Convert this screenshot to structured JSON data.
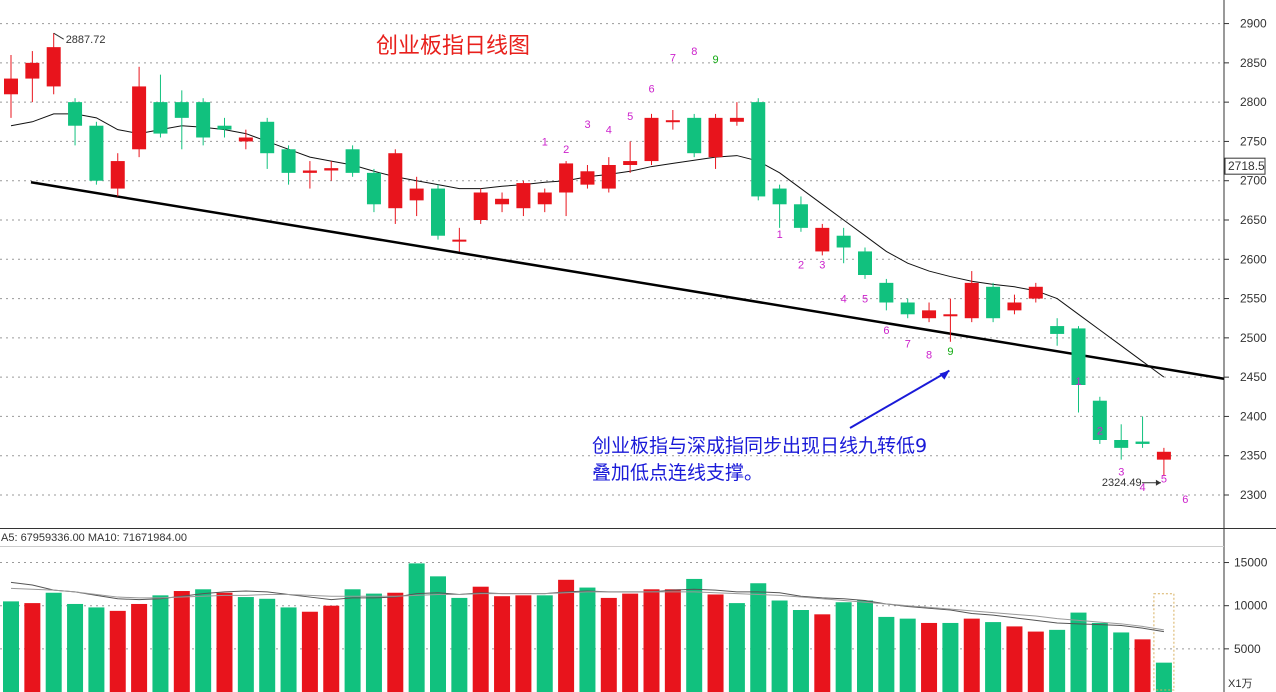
{
  "chart_data": [
    {
      "type": "candlestick",
      "title": "创业板指日线图",
      "ylim": [
        2258,
        2930
      ],
      "yticks": [
        2300,
        2350,
        2400,
        2450,
        2500,
        2550,
        2600,
        2650,
        2700,
        2750,
        2800,
        2850,
        2900
      ],
      "current_price_label": "2718.5",
      "current_price": 2718.5,
      "high_marker": {
        "index": 2,
        "value": 2887.72,
        "label": "2887.72"
      },
      "low_marker": {
        "index": 54,
        "value": 2324.49,
        "label": "2324.49"
      },
      "candles": [
        [
          2810,
          2830,
          2860,
          2780
        ],
        [
          2830,
          2850,
          2865,
          2800
        ],
        [
          2820,
          2870,
          2888,
          2810
        ],
        [
          2800,
          2770,
          2805,
          2745
        ],
        [
          2770,
          2700,
          2775,
          2695
        ],
        [
          2690,
          2725,
          2735,
          2680
        ],
        [
          2740,
          2820,
          2845,
          2730
        ],
        [
          2800,
          2760,
          2835,
          2755
        ],
        [
          2800,
          2780,
          2815,
          2740
        ],
        [
          2800,
          2755,
          2805,
          2745
        ],
        [
          2770,
          2765,
          2780,
          2755
        ],
        [
          2750,
          2755,
          2765,
          2740
        ],
        [
          2775,
          2735,
          2780,
          2715
        ],
        [
          2740,
          2710,
          2745,
          2695
        ],
        [
          2710,
          2713,
          2725,
          2690
        ],
        [
          2713,
          2716,
          2725,
          2700
        ],
        [
          2740,
          2710,
          2745,
          2705
        ],
        [
          2710,
          2670,
          2715,
          2660
        ],
        [
          2665,
          2735,
          2740,
          2645
        ],
        [
          2675,
          2690,
          2705,
          2655
        ],
        [
          2690,
          2630,
          2695,
          2625
        ],
        [
          2625,
          2625,
          2640,
          2610
        ],
        [
          2650,
          2685,
          2690,
          2645
        ],
        [
          2670,
          2677,
          2685,
          2660
        ],
        [
          2665,
          2697,
          2700,
          2655
        ],
        [
          2670,
          2685,
          2690,
          2660
        ],
        [
          2685,
          2722,
          2725,
          2655
        ],
        [
          2695,
          2712,
          2720,
          2690
        ],
        [
          2690,
          2720,
          2730,
          2685
        ],
        [
          2720,
          2725,
          2750,
          2710
        ],
        [
          2725,
          2780,
          2785,
          2720
        ],
        [
          2775,
          2777,
          2790,
          2765
        ],
        [
          2780,
          2735,
          2785,
          2730
        ],
        [
          2730,
          2780,
          2785,
          2715
        ],
        [
          2775,
          2780,
          2800,
          2770
        ],
        [
          2800,
          2680,
          2805,
          2675
        ],
        [
          2690,
          2670,
          2695,
          2640
        ],
        [
          2670,
          2640,
          2680,
          2635
        ],
        [
          2610,
          2640,
          2645,
          2605
        ],
        [
          2630,
          2615,
          2640,
          2595
        ],
        [
          2610,
          2580,
          2615,
          2575
        ],
        [
          2570,
          2545,
          2575,
          2535
        ],
        [
          2545,
          2530,
          2550,
          2525
        ],
        [
          2525,
          2535,
          2545,
          2520
        ],
        [
          2530,
          2530,
          2550,
          2495
        ],
        [
          2525,
          2570,
          2585,
          2520
        ],
        [
          2565,
          2525,
          2570,
          2520
        ],
        [
          2535,
          2545,
          2555,
          2530
        ],
        [
          2550,
          2565,
          2570,
          2545
        ],
        [
          2515,
          2505,
          2525,
          2490
        ],
        [
          2512,
          2440,
          2515,
          2405
        ],
        [
          2420,
          2370,
          2425,
          2365
        ],
        [
          2370,
          2360,
          2390,
          2345
        ],
        [
          2368,
          2365,
          2400,
          2360
        ],
        [
          2345,
          2355,
          2360,
          2324
        ]
      ],
      "ma_line": [
        2770,
        2775,
        2785,
        2785,
        2780,
        2765,
        2760,
        2765,
        2770,
        2768,
        2765,
        2760,
        2750,
        2740,
        2730,
        2725,
        2720,
        2712,
        2705,
        2700,
        2695,
        2690,
        2690,
        2693,
        2695,
        2698,
        2700,
        2705,
        2708,
        2712,
        2718,
        2722,
        2726,
        2730,
        2732,
        2725,
        2710,
        2690,
        2670,
        2650,
        2630,
        2610,
        2595,
        2585,
        2578,
        2572,
        2568,
        2565,
        2560,
        2550,
        2530,
        2510,
        2490,
        2470,
        2450
      ],
      "trendline": [
        [
          0,
          2698
        ],
        [
          60,
          2448
        ]
      ],
      "td_sequence": [
        {
          "index": 25,
          "value": 2745,
          "label": "1"
        },
        {
          "index": 26,
          "value": 2735,
          "label": "2"
        },
        {
          "index": 27,
          "value": 2767,
          "label": "3"
        },
        {
          "index": 28,
          "value": 2760,
          "label": "4"
        },
        {
          "index": 29,
          "value": 2777,
          "label": "5"
        },
        {
          "index": 30,
          "value": 2812,
          "label": "6"
        },
        {
          "index": 31,
          "value": 2852,
          "label": "7"
        },
        {
          "index": 32,
          "value": 2860,
          "label": "8"
        },
        {
          "index": 33,
          "value": 2850,
          "label": "9"
        },
        {
          "index": 36,
          "value": 2627,
          "label": "1"
        },
        {
          "index": 37,
          "value": 2588,
          "label": "2"
        },
        {
          "index": 38,
          "value": 2588,
          "label": "3"
        },
        {
          "index": 39,
          "value": 2545,
          "label": "4"
        },
        {
          "index": 40,
          "value": 2545,
          "label": "5"
        },
        {
          "index": 41,
          "value": 2505,
          "label": "6"
        },
        {
          "index": 42,
          "value": 2488,
          "label": "7"
        },
        {
          "index": 43,
          "value": 2474,
          "label": "8"
        },
        {
          "index": 44,
          "value": 2478,
          "label": "9"
        },
        {
          "index": 50,
          "value": 2440,
          "label": "1"
        },
        {
          "index": 51,
          "value": 2377,
          "label": "2"
        },
        {
          "index": 52,
          "value": 2325,
          "label": "3"
        },
        {
          "index": 53,
          "value": 2305,
          "label": "4"
        },
        {
          "index": 54,
          "value": 2316,
          "label": "5"
        },
        {
          "index": 55,
          "value": 2290,
          "label": "6"
        }
      ],
      "annotation": {
        "lines": [
          "创业板指与深成指同步出现日线九转低9",
          "叠加低点连线支撑。"
        ],
        "arrow_to_index": 44,
        "arrow_to_value": 2466
      }
    },
    {
      "type": "bar",
      "legend_text": "A5: 67959336.00  MA10: 71671984.00",
      "unit_label": "X1万",
      "ylim": [
        0,
        16800
      ],
      "yticks": [
        5000,
        10000,
        15000
      ],
      "values": [
        10500,
        10300,
        11500,
        10200,
        9800,
        9400,
        10200,
        11200,
        11700,
        11900,
        11500,
        11000,
        10800,
        9800,
        9300,
        10000,
        11900,
        11400,
        11500,
        14900,
        13400,
        10900,
        12200,
        11100,
        11200,
        11200,
        13000,
        12100,
        10900,
        11400,
        11900,
        11900,
        13100,
        11300,
        10300,
        12600,
        10600,
        9500,
        9000,
        10400,
        10600,
        8700,
        8500,
        8000,
        8000,
        8500,
        8100,
        7600,
        7000,
        7200,
        9200,
        8000,
        6900,
        6100,
        3400
      ],
      "colors": [
        "g",
        "r",
        "g",
        "g",
        "g",
        "r",
        "r",
        "g",
        "r",
        "g",
        "r",
        "g",
        "g",
        "g",
        "r",
        "r",
        "g",
        "g",
        "r",
        "g",
        "g",
        "g",
        "r",
        "r",
        "r",
        "g",
        "r",
        "g",
        "r",
        "r",
        "r",
        "r",
        "g",
        "r",
        "g",
        "g",
        "g",
        "g",
        "r",
        "g",
        "g",
        "g",
        "g",
        "r",
        "g",
        "r",
        "g",
        "r",
        "r",
        "g",
        "g",
        "g",
        "g",
        "r",
        "g"
      ],
      "ma_lines": [
        [
          12700,
          12400,
          11800,
          11600,
          11200,
          10800,
          10700,
          10800,
          11100,
          11400,
          11600,
          11700,
          11600,
          11300,
          11000,
          10700,
          10900,
          10900,
          11000,
          11400,
          11500,
          11300,
          11500,
          11400,
          11400,
          11400,
          11600,
          11700,
          11600,
          11600,
          11600,
          11800,
          11900,
          11800,
          11600,
          11600,
          11500,
          11100,
          10900,
          10800,
          10600,
          10200,
          9900,
          9700,
          9500,
          9100,
          8900,
          8600,
          8300,
          8000,
          7900,
          7800,
          7700,
          7400,
          7000
        ],
        [
          12000,
          11900,
          11800,
          11600,
          11300,
          11000,
          10900,
          10900,
          11000,
          11100,
          11200,
          11200,
          11300,
          11300,
          11200,
          11100,
          11100,
          11100,
          11100,
          11200,
          11300,
          11300,
          11400,
          11400,
          11400,
          11400,
          11500,
          11600,
          11600,
          11600,
          11600,
          11600,
          11600,
          11500,
          11400,
          11300,
          11200,
          11000,
          10800,
          10600,
          10400,
          10200,
          10000,
          9800,
          9600,
          9400,
          9200,
          9000,
          8800,
          8500,
          8300,
          8100,
          7900,
          7600,
          7200
        ]
      ]
    }
  ],
  "colors": {
    "up": "#e8141c",
    "down": "#11c17e",
    "td_pink": "#cc22cc",
    "td_green": "#11aa11",
    "annotation": "#1a1ad8",
    "ma": "#111111"
  }
}
